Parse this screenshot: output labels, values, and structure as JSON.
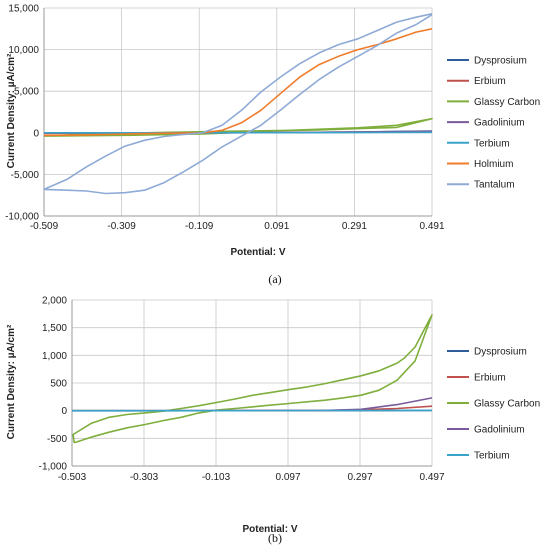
{
  "chart_data": [
    {
      "type": "line",
      "xlabel": "Potential: V",
      "ylabel": "Current Density: µA/cm²",
      "caption": "(a)",
      "xlim": [
        -0.509,
        0.491
      ],
      "ylim": [
        -10000,
        15000
      ],
      "x_ticks": [
        -0.509,
        -0.309,
        -0.109,
        0.091,
        0.291,
        0.491
      ],
      "x_tick_labels": [
        "-0.509",
        "-0.309",
        "-0.109",
        "0.091",
        "0.291",
        "0.491"
      ],
      "y_ticks": [
        -10000,
        -5000,
        0,
        5000,
        10000,
        15000
      ],
      "y_tick_labels": [
        "-10,000",
        "-5,000",
        "0",
        "5,000",
        "10,000",
        "15,000"
      ],
      "grid": true,
      "legend": "right",
      "series": [
        {
          "name": "Dysprosium",
          "color": "#2e5d9a",
          "x": [
            -0.509,
            -0.3,
            -0.1,
            0.1,
            0.3,
            0.491
          ],
          "y": [
            -50,
            -30,
            0,
            40,
            100,
            200
          ]
        },
        {
          "name": "Erbium",
          "color": "#c0504d",
          "x": [
            -0.509,
            -0.3,
            -0.1,
            0.1,
            0.3,
            0.491
          ],
          "y": [
            -60,
            -30,
            0,
            30,
            80,
            150
          ]
        },
        {
          "name": "Glassy Carbon",
          "color": "#7fae3c",
          "x": [
            -0.509,
            -0.3,
            -0.1,
            0.1,
            0.3,
            0.4,
            0.491,
            0.4,
            0.2,
            0.0,
            -0.2,
            -0.4,
            -0.509
          ],
          "y": [
            -400,
            -300,
            -150,
            250,
            600,
            900,
            1700,
            650,
            350,
            200,
            50,
            -150,
            -400
          ]
        },
        {
          "name": "Gadolinium",
          "color": "#7a5a9a",
          "x": [
            -0.509,
            -0.3,
            -0.1,
            0.1,
            0.3,
            0.491
          ],
          "y": [
            -30,
            -20,
            0,
            30,
            80,
            180
          ]
        },
        {
          "name": "Terbium",
          "color": "#3aa3c9",
          "x": [
            -0.509,
            -0.3,
            -0.1,
            0.1,
            0.3,
            0.491
          ],
          "y": [
            0,
            0,
            0,
            10,
            30,
            60
          ]
        },
        {
          "name": "Holmium",
          "color": "#f07c2b",
          "x": [
            -0.509,
            -0.4,
            -0.3,
            -0.2,
            -0.1,
            -0.05,
            0.0,
            0.05,
            0.1,
            0.15,
            0.2,
            0.25,
            0.3,
            0.35,
            0.4,
            0.45,
            0.491
          ],
          "y": [
            -300,
            -250,
            -150,
            -50,
            0,
            300,
            1200,
            2700,
            4700,
            6700,
            8200,
            9200,
            10000,
            10600,
            11300,
            12100,
            12500
          ]
        },
        {
          "name": "Tantalum",
          "color": "#8eaad6",
          "x": [
            0.491,
            0.45,
            0.4,
            0.35,
            0.3,
            0.25,
            0.2,
            0.15,
            0.1,
            0.05,
            0.0,
            -0.05,
            -0.1,
            -0.15,
            -0.2,
            -0.25,
            -0.3,
            -0.35,
            -0.4,
            -0.45,
            -0.509,
            -0.45,
            -0.4,
            -0.35,
            -0.3,
            -0.25,
            -0.2,
            -0.15,
            -0.1,
            -0.05,
            0.0,
            0.05,
            0.1,
            0.15,
            0.2,
            0.25,
            0.3,
            0.35,
            0.4,
            0.45,
            0.491
          ],
          "y": [
            14200,
            13000,
            12000,
            10500,
            9200,
            7900,
            6400,
            4600,
            2700,
            900,
            -400,
            -1700,
            -3300,
            -4700,
            -6000,
            -6900,
            -7200,
            -7300,
            -7000,
            -6900,
            -6800,
            -5600,
            -4100,
            -2800,
            -1600,
            -900,
            -450,
            -200,
            0,
            900,
            2700,
            4900,
            6700,
            8300,
            9600,
            10600,
            11300,
            12300,
            13300,
            13900,
            14300
          ]
        }
      ]
    },
    {
      "type": "line",
      "xlabel": "Potential: V",
      "ylabel": "Current Density: µA/cm²",
      "caption": "(b)",
      "xlim": [
        -0.503,
        0.497
      ],
      "ylim": [
        -1000,
        2000
      ],
      "x_ticks": [
        -0.503,
        -0.303,
        -0.103,
        0.097,
        0.297,
        0.497
      ],
      "x_tick_labels": [
        "-0.503",
        "-0.303",
        "-0.103",
        "0.097",
        "0.297",
        "0.497"
      ],
      "y_ticks": [
        -1000,
        -500,
        0,
        500,
        1000,
        1500,
        2000
      ],
      "y_tick_labels": [
        "-1,000",
        "-500",
        "0",
        "500",
        "1,000",
        "1,500",
        "2,000"
      ],
      "grid": true,
      "legend": "right",
      "series": [
        {
          "name": "Dysprosium",
          "color": "#2e5d9a",
          "x": [
            -0.503,
            -0.3,
            -0.1,
            0.1,
            0.3,
            0.497
          ],
          "y": [
            -3,
            -2,
            0,
            1,
            2,
            3
          ]
        },
        {
          "name": "Erbium",
          "color": "#c0504d",
          "x": [
            -0.503,
            -0.1,
            0.2,
            0.3,
            0.4,
            0.497
          ],
          "y": [
            0,
            0,
            5,
            15,
            40,
            80
          ]
        },
        {
          "name": "Glassy Carbon",
          "color": "#7fae3c",
          "x": [
            -0.497,
            -0.45,
            -0.4,
            -0.35,
            -0.3,
            -0.25,
            -0.2,
            -0.15,
            -0.1,
            -0.05,
            0.0,
            0.05,
            0.1,
            0.15,
            0.2,
            0.25,
            0.3,
            0.35,
            0.4,
            0.45,
            0.497,
            0.47,
            0.45,
            0.42,
            0.4,
            0.35,
            0.3,
            0.25,
            0.2,
            0.15,
            0.1,
            0.05,
            0.0,
            -0.05,
            -0.1,
            -0.15,
            -0.2,
            -0.25,
            -0.3,
            -0.35,
            -0.4,
            -0.45,
            -0.5,
            -0.497
          ],
          "y": [
            -580,
            -480,
            -390,
            -310,
            -250,
            -180,
            -120,
            -40,
            10,
            40,
            70,
            100,
            130,
            160,
            190,
            230,
            280,
            370,
            550,
            900,
            1730,
            1400,
            1150,
            950,
            860,
            720,
            630,
            560,
            490,
            430,
            380,
            330,
            280,
            210,
            150,
            90,
            40,
            -10,
            -40,
            -70,
            -120,
            -230,
            -430,
            -580
          ]
        },
        {
          "name": "Gadolinium",
          "color": "#7a5a9a",
          "x": [
            -0.503,
            -0.1,
            0.2,
            0.3,
            0.4,
            0.497
          ],
          "y": [
            0,
            0,
            5,
            25,
            110,
            230
          ]
        },
        {
          "name": "Terbium",
          "color": "#3aa3c9",
          "x": [
            -0.503,
            -0.1,
            0.1,
            0.3,
            0.497
          ],
          "y": [
            0,
            0,
            1,
            3,
            6
          ]
        }
      ]
    }
  ]
}
